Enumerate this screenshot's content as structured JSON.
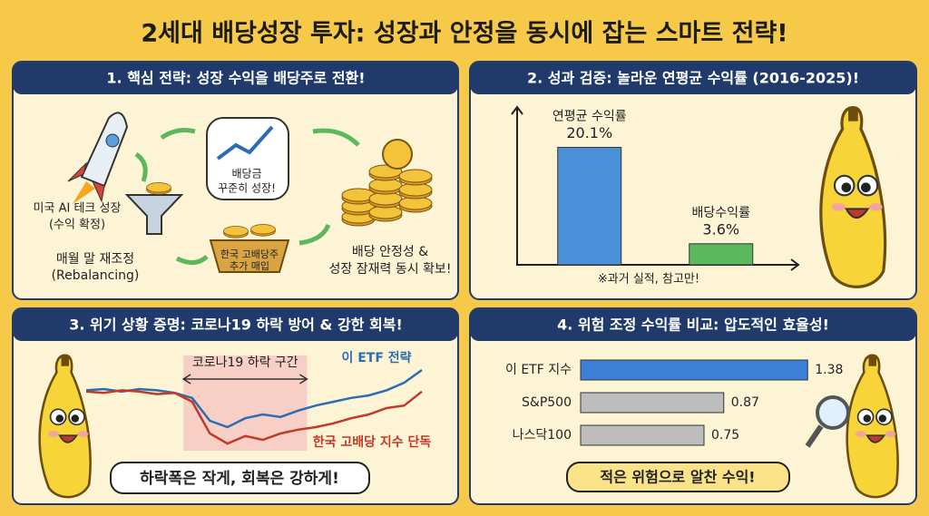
{
  "title": "2세대 배당성장 투자: 성장과 안정을 동시에 잡는 스마트 전략!",
  "panels": {
    "strategy": {
      "heading": "1. 핵심 전략: 성장 수익을 배당주로 전환!",
      "labels": [
        "미국 AI 테크 성장",
        "(수익 확정)",
        "매월 말 재조정",
        "(Rebalancing)",
        "한국 고배당주",
        "추가 매입",
        "배당금",
        "꾸준히 성장!",
        "배당 안정성 &",
        "성장 잠재력 동시 확보!"
      ]
    }
  },
  "chart_data": [
    {
      "type": "bar",
      "title": "2. 성과 검증: 놀라운 연평균 수익률 (2016-2025)!",
      "categories": [
        "연평균 수익률",
        "배당수익률"
      ],
      "values": [
        20.1,
        3.6
      ],
      "value_labels": [
        "20.1%",
        "3.6%"
      ],
      "colors": [
        "#4a90d9",
        "#5cb85c"
      ],
      "ylim": [
        0,
        27
      ],
      "note": "※과거 실적, 참고만!"
    },
    {
      "type": "line",
      "title": "3. 위기 상황 증명: 코로나19 하락 방어 & 강한 회복!",
      "x": [
        0,
        1,
        2,
        3,
        4,
        5,
        6,
        7,
        8,
        9,
        10,
        11,
        12,
        13,
        14,
        15,
        16,
        17,
        18,
        19
      ],
      "xlim": [
        0,
        19
      ],
      "ylim": [
        0,
        100
      ],
      "series": [
        {
          "name": "이 ETF 전략",
          "color": "#2a6db5",
          "values": [
            64,
            65,
            63,
            65,
            64,
            62,
            58,
            40,
            35,
            42,
            45,
            43,
            48,
            52,
            55,
            58,
            60,
            64,
            70,
            80
          ]
        },
        {
          "name": "한국 고배당 지수 단독",
          "color": "#c0392b",
          "values": [
            63,
            62,
            64,
            63,
            61,
            62,
            55,
            30,
            22,
            28,
            25,
            30,
            33,
            35,
            38,
            42,
            45,
            50,
            52,
            63
          ]
        }
      ],
      "highlight": {
        "label": "코로나19 하락 구간",
        "range": [
          5.5,
          12.5
        ]
      },
      "caption": "하락폭은 작게, 회복은 강하게!"
    },
    {
      "type": "hbar",
      "title": "4. 위험 조정 수익률 비교: 압도적인 효율성!",
      "categories": [
        "이 ETF 지수",
        "S&P500",
        "나스닥100"
      ],
      "values": [
        1.38,
        0.87,
        0.75
      ],
      "colors": [
        "#3b7fd6",
        "#bdbdbd",
        "#bdbdbd"
      ],
      "xlim": [
        0,
        1.5
      ],
      "caption": "적은 위험으로 알찬 수익!"
    }
  ]
}
